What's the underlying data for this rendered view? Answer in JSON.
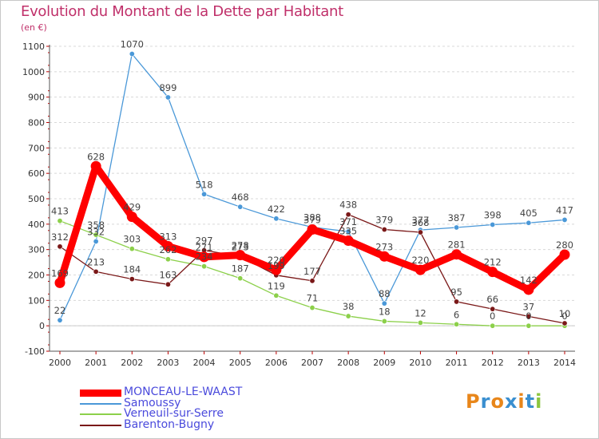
{
  "header": {
    "title": "Evolution du Montant de la Dette par Habitant",
    "unit": "(en €)"
  },
  "logo": {
    "text": "Proxiti",
    "colors": [
      "#e8861a",
      "#3a8fd0",
      "#e8861a",
      "#3a8fd0",
      "#e8861a",
      "#3a8fd0",
      "#8cc63f"
    ]
  },
  "chart_data": {
    "type": "line",
    "title": "Evolution du Montant de la Dette par Habitant",
    "ylabel": "(en €)",
    "xlabel": "",
    "x": [
      "2000",
      "2001",
      "2002",
      "2003",
      "2004",
      "2005",
      "2006",
      "2007",
      "2008",
      "2009",
      "2010",
      "2011",
      "2012",
      "2013",
      "2014"
    ],
    "ylim": [
      -100,
      1100
    ],
    "yticks": [
      -100,
      0,
      100,
      200,
      300,
      400,
      500,
      600,
      700,
      800,
      900,
      1000,
      1100
    ],
    "grid": "horizontal dashed",
    "legend_position": "bottom-left",
    "series": [
      {
        "name": "MONCEAU-LE-WAAST",
        "color": "#ff0000",
        "emphasis": true,
        "values": [
          169,
          628,
          429,
          313,
          271,
          278,
          220,
          379,
          335,
          273,
          220,
          281,
          212,
          142,
          280
        ],
        "labels": [
          "169",
          "628",
          "429",
          "313",
          "271",
          "278",
          "220",
          "379",
          "335",
          "273",
          "220",
          "281",
          "212",
          "142",
          "280"
        ]
      },
      {
        "name": "Samoussy",
        "color": "#4a98d8",
        "values": [
          22,
          332,
          1070,
          899,
          518,
          468,
          422,
          388,
          371,
          88,
          377,
          387,
          398,
          405,
          417
        ],
        "labels": [
          "22",
          "332",
          "1070",
          "899",
          "518",
          "468",
          "422",
          "388",
          "371",
          "88",
          "377",
          "387",
          "398",
          "405",
          "417"
        ]
      },
      {
        "name": "Verneuil-sur-Serre",
        "color": "#8cd04a",
        "values": [
          413,
          358,
          303,
          262,
          234,
          187,
          119,
          71,
          38,
          18,
          12,
          6,
          0,
          0,
          0
        ],
        "labels": [
          "413",
          "358",
          "303",
          "262",
          "234",
          "187",
          "119",
          "71",
          "38",
          "18",
          "12",
          "6",
          "0",
          "0",
          "0"
        ]
      },
      {
        "name": "Barenton-Bugny",
        "color": "#7a1818",
        "values": [
          312,
          213,
          184,
          163,
          297,
          273,
          199,
          177,
          438,
          379,
          368,
          95,
          66,
          37,
          10
        ],
        "labels": [
          "312",
          "213",
          "184",
          "163",
          "297",
          "273",
          "199",
          "177",
          "438",
          "379",
          "368",
          "95",
          "66",
          "37",
          "10"
        ]
      }
    ]
  }
}
